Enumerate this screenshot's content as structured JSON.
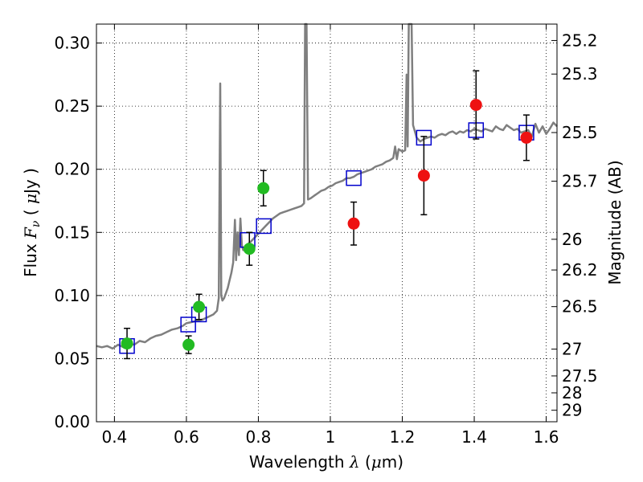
{
  "chart_data": {
    "type": "scatter",
    "title": "",
    "xlabel": "Wavelength  λ (μm)",
    "ylabel": "Flux  F_ν ( μJy )",
    "ylabel_parts": {
      "pre": "Flux  ",
      "math": "F",
      "sub": "ν",
      "mid": " (  ",
      "mu": "μ",
      "post": "Jy )"
    },
    "xlabel_parts": {
      "pre": "Wavelength  ",
      "math": "λ",
      "mid": " (",
      "mu": "μ",
      "post": "m)"
    },
    "y2label": "Magnitude (AB)",
    "xlim": [
      0.35,
      1.63
    ],
    "ylim": [
      0.0,
      0.315
    ],
    "grid": true,
    "x_ticks": [
      0.4,
      0.6,
      0.8,
      1.0,
      1.2,
      1.4,
      1.6
    ],
    "x_tick_labels": [
      "0.4",
      "0.6",
      "0.8",
      "1",
      "1.2",
      "1.4",
      "1.6"
    ],
    "y_ticks": [
      0.0,
      0.05,
      0.1,
      0.15,
      0.2,
      0.25,
      0.3
    ],
    "y_tick_labels": [
      "0.00",
      "0.05",
      "0.10",
      "0.15",
      "0.20",
      "0.25",
      "0.30"
    ],
    "mag_ticks": [
      "25.2",
      "25.3",
      "25.5",
      "25.7",
      "26",
      "26.2",
      "26.5",
      "27",
      "27.5",
      "28",
      "29"
    ],
    "colors": {
      "green": "#22bb22",
      "red": "#ee1111",
      "model_square": "#0000cc",
      "spectrum": "#7f7f7f",
      "errorbar": "#000000",
      "grid": "#000000"
    },
    "series": [
      {
        "marker": "green-circle",
        "points": [
          {
            "x": 0.435,
            "y": 0.062,
            "err": 0.012
          },
          {
            "x": 0.606,
            "y": 0.061,
            "err": 0.007
          },
          {
            "x": 0.635,
            "y": 0.091,
            "err": 0.01
          },
          {
            "x": 0.775,
            "y": 0.137,
            "err": 0.013
          },
          {
            "x": 0.814,
            "y": 0.185,
            "err": 0.014
          }
        ]
      },
      {
        "marker": "red-circle",
        "points": [
          {
            "x": 1.065,
            "y": 0.157,
            "err": 0.017
          },
          {
            "x": 1.26,
            "y": 0.195,
            "err": 0.031
          },
          {
            "x": 1.405,
            "y": 0.251,
            "err": 0.027
          },
          {
            "x": 1.545,
            "y": 0.225,
            "err": 0.018
          }
        ]
      },
      {
        "marker": "model-square",
        "points": [
          {
            "x": 0.435,
            "y": 0.06
          },
          {
            "x": 0.605,
            "y": 0.077
          },
          {
            "x": 0.635,
            "y": 0.085
          },
          {
            "x": 0.77,
            "y": 0.144
          },
          {
            "x": 0.815,
            "y": 0.155
          },
          {
            "x": 1.065,
            "y": 0.193
          },
          {
            "x": 1.26,
            "y": 0.225
          },
          {
            "x": 1.405,
            "y": 0.231
          },
          {
            "x": 1.545,
            "y": 0.229
          }
        ]
      }
    ],
    "spectrum": [
      [
        0.35,
        0.06
      ],
      [
        0.365,
        0.059
      ],
      [
        0.38,
        0.06
      ],
      [
        0.395,
        0.058
      ],
      [
        0.41,
        0.061
      ],
      [
        0.425,
        0.059
      ],
      [
        0.44,
        0.062
      ],
      [
        0.455,
        0.061
      ],
      [
        0.47,
        0.064
      ],
      [
        0.485,
        0.063
      ],
      [
        0.5,
        0.066
      ],
      [
        0.515,
        0.068
      ],
      [
        0.53,
        0.069
      ],
      [
        0.545,
        0.071
      ],
      [
        0.56,
        0.073
      ],
      [
        0.575,
        0.074
      ],
      [
        0.59,
        0.076
      ],
      [
        0.6,
        0.078
      ],
      [
        0.615,
        0.079
      ],
      [
        0.63,
        0.08
      ],
      [
        0.645,
        0.081
      ],
      [
        0.66,
        0.083
      ],
      [
        0.675,
        0.085
      ],
      [
        0.685,
        0.088
      ],
      [
        0.69,
        0.098
      ],
      [
        0.694,
        0.268
      ],
      [
        0.697,
        0.1
      ],
      [
        0.7,
        0.096
      ],
      [
        0.705,
        0.098
      ],
      [
        0.71,
        0.102
      ],
      [
        0.715,
        0.106
      ],
      [
        0.72,
        0.112
      ],
      [
        0.725,
        0.118
      ],
      [
        0.73,
        0.126
      ],
      [
        0.735,
        0.16
      ],
      [
        0.738,
        0.128
      ],
      [
        0.742,
        0.15
      ],
      [
        0.746,
        0.132
      ],
      [
        0.75,
        0.161
      ],
      [
        0.754,
        0.14
      ],
      [
        0.758,
        0.136
      ],
      [
        0.765,
        0.139
      ],
      [
        0.772,
        0.141
      ],
      [
        0.78,
        0.143
      ],
      [
        0.79,
        0.146
      ],
      [
        0.8,
        0.149
      ],
      [
        0.81,
        0.152
      ],
      [
        0.82,
        0.155
      ],
      [
        0.83,
        0.158
      ],
      [
        0.84,
        0.161
      ],
      [
        0.85,
        0.163
      ],
      [
        0.86,
        0.165
      ],
      [
        0.87,
        0.166
      ],
      [
        0.88,
        0.167
      ],
      [
        0.89,
        0.168
      ],
      [
        0.9,
        0.169
      ],
      [
        0.91,
        0.17
      ],
      [
        0.92,
        0.171
      ],
      [
        0.927,
        0.173
      ],
      [
        0.93,
        0.315
      ],
      [
        0.934,
        0.315
      ],
      [
        0.938,
        0.176
      ],
      [
        0.945,
        0.177
      ],
      [
        0.955,
        0.179
      ],
      [
        0.965,
        0.181
      ],
      [
        0.975,
        0.183
      ],
      [
        0.985,
        0.184
      ],
      [
        0.995,
        0.186
      ],
      [
        1.005,
        0.187
      ],
      [
        1.015,
        0.189
      ],
      [
        1.025,
        0.19
      ],
      [
        1.035,
        0.191
      ],
      [
        1.045,
        0.193
      ],
      [
        1.055,
        0.193
      ],
      [
        1.065,
        0.194
      ],
      [
        1.075,
        0.196
      ],
      [
        1.085,
        0.197
      ],
      [
        1.095,
        0.198
      ],
      [
        1.105,
        0.199
      ],
      [
        1.115,
        0.2
      ],
      [
        1.125,
        0.202
      ],
      [
        1.135,
        0.203
      ],
      [
        1.145,
        0.204
      ],
      [
        1.155,
        0.206
      ],
      [
        1.165,
        0.207
      ],
      [
        1.175,
        0.209
      ],
      [
        1.18,
        0.218
      ],
      [
        1.185,
        0.208
      ],
      [
        1.19,
        0.216
      ],
      [
        1.2,
        0.214
      ],
      [
        1.208,
        0.215
      ],
      [
        1.212,
        0.275
      ],
      [
        1.215,
        0.218
      ],
      [
        1.218,
        0.315
      ],
      [
        1.226,
        0.315
      ],
      [
        1.23,
        0.235
      ],
      [
        1.24,
        0.225
      ],
      [
        1.25,
        0.222
      ],
      [
        1.26,
        0.224
      ],
      [
        1.27,
        0.225
      ],
      [
        1.28,
        0.226
      ],
      [
        1.29,
        0.225
      ],
      [
        1.3,
        0.227
      ],
      [
        1.31,
        0.228
      ],
      [
        1.32,
        0.227
      ],
      [
        1.33,
        0.229
      ],
      [
        1.34,
        0.23
      ],
      [
        1.35,
        0.228
      ],
      [
        1.36,
        0.23
      ],
      [
        1.37,
        0.229
      ],
      [
        1.38,
        0.231
      ],
      [
        1.39,
        0.23
      ],
      [
        1.4,
        0.232
      ],
      [
        1.41,
        0.231
      ],
      [
        1.42,
        0.23
      ],
      [
        1.43,
        0.232
      ],
      [
        1.44,
        0.231
      ],
      [
        1.45,
        0.23
      ],
      [
        1.46,
        0.234
      ],
      [
        1.47,
        0.232
      ],
      [
        1.48,
        0.231
      ],
      [
        1.49,
        0.235
      ],
      [
        1.5,
        0.233
      ],
      [
        1.51,
        0.231
      ],
      [
        1.52,
        0.232
      ],
      [
        1.53,
        0.229
      ],
      [
        1.54,
        0.23
      ],
      [
        1.55,
        0.231
      ],
      [
        1.56,
        0.226
      ],
      [
        1.57,
        0.236
      ],
      [
        1.58,
        0.229
      ],
      [
        1.59,
        0.234
      ],
      [
        1.6,
        0.228
      ],
      [
        1.61,
        0.232
      ],
      [
        1.62,
        0.237
      ],
      [
        1.63,
        0.234
      ]
    ]
  }
}
